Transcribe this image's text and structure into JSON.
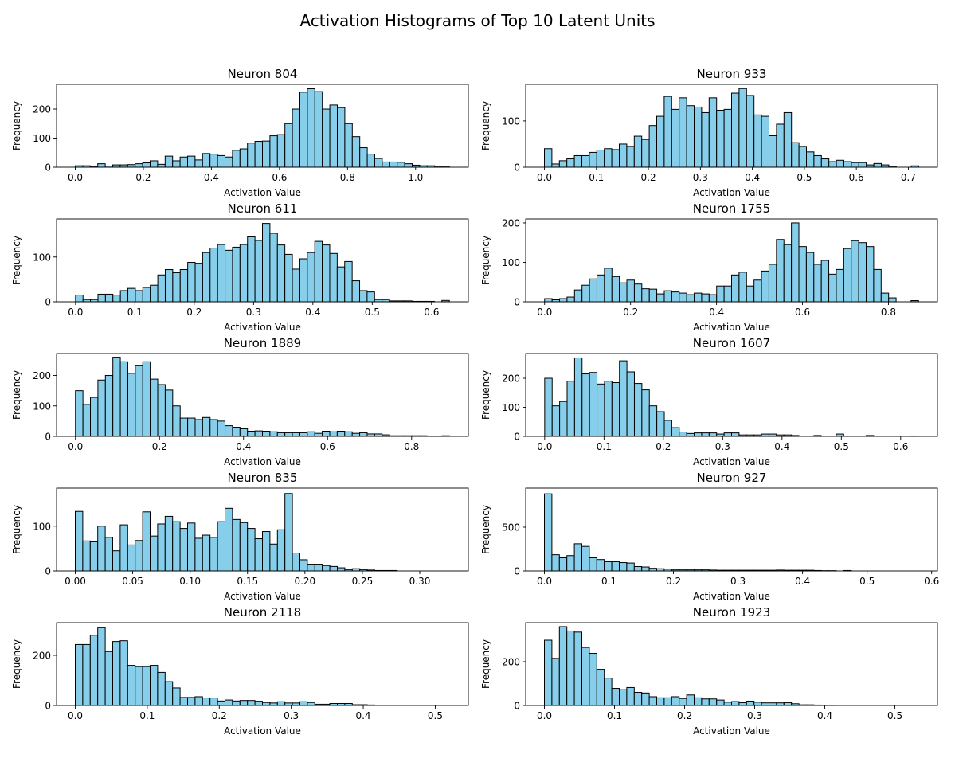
{
  "figure": {
    "suptitle": "Activation Histograms of Top 10 Latent Units",
    "bar_color": "#87CEEB",
    "edge_color": "#000000"
  },
  "chart_data": [
    {
      "type": "bar",
      "title": "Neuron 804",
      "xlabel": "Activation Value",
      "ylabel": "Frequency",
      "xlim": [
        -0.055,
        1.155
      ],
      "ylim": [
        0,
        285
      ],
      "xticks": [
        0.0,
        0.2,
        0.4,
        0.6,
        0.8,
        1.0
      ],
      "xtick_labels": [
        "0.0",
        "0.2",
        "0.4",
        "0.6",
        "0.8",
        "1.0"
      ],
      "yticks": [
        0,
        100,
        200
      ],
      "ytick_labels": [
        "0",
        "100",
        "200"
      ],
      "bin_start": 0.0,
      "bin_width": 0.022,
      "counts": [
        5,
        5,
        3,
        12,
        4,
        8,
        8,
        9,
        12,
        15,
        22,
        10,
        38,
        22,
        35,
        38,
        25,
        47,
        45,
        40,
        35,
        58,
        63,
        83,
        89,
        90,
        108,
        112,
        150,
        200,
        258,
        270,
        260,
        200,
        214,
        205,
        150,
        105,
        67,
        45,
        30,
        18,
        18,
        17,
        12,
        7,
        5,
        5,
        1,
        1
      ]
    },
    {
      "type": "bar",
      "title": "Neuron 933",
      "xlabel": "Activation Value",
      "ylabel": "Frequency",
      "xlim": [
        -0.036,
        0.756
      ],
      "ylim": [
        0,
        179
      ],
      "xticks": [
        0.0,
        0.1,
        0.2,
        0.3,
        0.4,
        0.5,
        0.6,
        0.7
      ],
      "xtick_labels": [
        "0.0",
        "0.1",
        "0.2",
        "0.3",
        "0.4",
        "0.5",
        "0.6",
        "0.7"
      ],
      "yticks": [
        0,
        100
      ],
      "ytick_labels": [
        "0",
        "100"
      ],
      "bin_start": 0.0,
      "bin_width": 0.0144,
      "counts": [
        40,
        7,
        14,
        18,
        25,
        25,
        32,
        37,
        40,
        38,
        50,
        45,
        67,
        60,
        90,
        110,
        153,
        125,
        150,
        133,
        130,
        118,
        150,
        123,
        125,
        160,
        170,
        155,
        113,
        110,
        68,
        93,
        118,
        53,
        45,
        33,
        25,
        18,
        12,
        15,
        12,
        10,
        10,
        5,
        8,
        5,
        2,
        0,
        0,
        3
      ]
    },
    {
      "type": "bar",
      "title": "Neuron 611",
      "xlabel": "Activation Value",
      "ylabel": "Frequency",
      "xlim": [
        -0.032,
        0.662
      ],
      "ylim": [
        0,
        185
      ],
      "xticks": [
        0.0,
        0.1,
        0.2,
        0.3,
        0.4,
        0.5,
        0.6
      ],
      "xtick_labels": [
        "0.0",
        "0.1",
        "0.2",
        "0.3",
        "0.4",
        "0.5",
        "0.6"
      ],
      "yticks": [
        0,
        100
      ],
      "ytick_labels": [
        "0",
        "100"
      ],
      "bin_start": 0.0,
      "bin_width": 0.0126,
      "counts": [
        15,
        5,
        5,
        17,
        17,
        15,
        25,
        30,
        25,
        32,
        37,
        60,
        72,
        65,
        72,
        88,
        86,
        110,
        120,
        128,
        115,
        122,
        128,
        145,
        137,
        175,
        153,
        127,
        106,
        73,
        96,
        110,
        135,
        127,
        108,
        78,
        90,
        47,
        25,
        22,
        5,
        5,
        2,
        2,
        2,
        1,
        1,
        1,
        0,
        3
      ]
    },
    {
      "type": "bar",
      "title": "Neuron 1755",
      "xlabel": "Activation Value",
      "ylabel": "Frequency",
      "xlim": [
        -0.044,
        0.914
      ],
      "ylim": [
        0,
        210
      ],
      "xticks": [
        0.0,
        0.2,
        0.4,
        0.6,
        0.8
      ],
      "xtick_labels": [
        "0.0",
        "0.2",
        "0.4",
        "0.6",
        "0.8"
      ],
      "yticks": [
        0,
        100,
        200
      ],
      "ytick_labels": [
        "0",
        "100",
        "200"
      ],
      "bin_start": 0.0,
      "bin_width": 0.0174,
      "counts": [
        8,
        5,
        8,
        12,
        30,
        42,
        58,
        68,
        85,
        64,
        48,
        55,
        45,
        33,
        32,
        20,
        28,
        25,
        22,
        18,
        22,
        20,
        18,
        40,
        40,
        68,
        75,
        40,
        55,
        78,
        95,
        158,
        145,
        200,
        140,
        125,
        95,
        105,
        70,
        82,
        135,
        155,
        150,
        140,
        82,
        22,
        10,
        0,
        0,
        3
      ]
    },
    {
      "type": "bar",
      "title": "Neuron 1889",
      "xlabel": "Activation Value",
      "ylabel": "Frequency",
      "xlim": [
        -0.045,
        0.935
      ],
      "ylim": [
        0,
        272
      ],
      "xticks": [
        0.0,
        0.2,
        0.4,
        0.6,
        0.8
      ],
      "xtick_labels": [
        "0.0",
        "0.2",
        "0.4",
        "0.6",
        "0.8"
      ],
      "yticks": [
        0,
        100,
        200
      ],
      "ytick_labels": [
        "0",
        "100",
        "200"
      ],
      "bin_start": 0.0,
      "bin_width": 0.0178,
      "counts": [
        150,
        105,
        128,
        185,
        200,
        260,
        245,
        207,
        232,
        245,
        188,
        170,
        152,
        100,
        60,
        60,
        55,
        62,
        55,
        50,
        35,
        30,
        25,
        17,
        18,
        17,
        15,
        12,
        12,
        12,
        12,
        15,
        10,
        17,
        15,
        17,
        15,
        10,
        12,
        8,
        8,
        5,
        2,
        2,
        2,
        2,
        2,
        1,
        1,
        2
      ]
    },
    {
      "type": "bar",
      "title": "Neuron 1607",
      "xlabel": "Activation Value",
      "ylabel": "Frequency",
      "xlim": [
        -0.032,
        0.662
      ],
      "ylim": [
        0,
        285
      ],
      "xticks": [
        0.0,
        0.1,
        0.2,
        0.3,
        0.4,
        0.5,
        0.6
      ],
      "xtick_labels": [
        "0.0",
        "0.1",
        "0.2",
        "0.3",
        "0.4",
        "0.5",
        "0.6"
      ],
      "yticks": [
        0,
        100,
        200
      ],
      "ytick_labels": [
        "0",
        "100",
        "200"
      ],
      "bin_start": 0.0,
      "bin_width": 0.0126,
      "counts": [
        200,
        105,
        120,
        190,
        270,
        215,
        220,
        180,
        190,
        185,
        260,
        222,
        182,
        160,
        105,
        85,
        55,
        30,
        15,
        10,
        12,
        12,
        12,
        8,
        12,
        12,
        5,
        5,
        5,
        8,
        8,
        5,
        5,
        3,
        0,
        0,
        3,
        0,
        0,
        8,
        0,
        0,
        0,
        3,
        0,
        0,
        0,
        0,
        0,
        1
      ]
    },
    {
      "type": "bar",
      "title": "Neuron 835",
      "xlabel": "Activation Value",
      "ylabel": "Frequency",
      "xlim": [
        -0.0163,
        0.3423
      ],
      "ylim": [
        0,
        185
      ],
      "xticks": [
        0.0,
        0.05,
        0.1,
        0.15,
        0.2,
        0.25,
        0.3
      ],
      "xtick_labels": [
        "0.00",
        "0.05",
        "0.10",
        "0.15",
        "0.20",
        "0.25",
        "0.30"
      ],
      "yticks": [
        0,
        100
      ],
      "ytick_labels": [
        "0",
        "100"
      ],
      "bin_start": 0.0,
      "bin_width": 0.00652,
      "counts": [
        133,
        67,
        65,
        100,
        75,
        45,
        103,
        58,
        68,
        132,
        78,
        105,
        122,
        110,
        95,
        107,
        73,
        80,
        75,
        110,
        140,
        115,
        108,
        95,
        72,
        88,
        60,
        92,
        173,
        40,
        25,
        15,
        15,
        12,
        10,
        7,
        3,
        5,
        3,
        2,
        1,
        1,
        1,
        0,
        0,
        0,
        0,
        0,
        0,
        0
      ]
    },
    {
      "type": "bar",
      "title": "Neuron 927",
      "xlabel": "Activation Value",
      "ylabel": "Frequency",
      "xlim": [
        -0.029,
        0.609
      ],
      "ylim": [
        0,
        945
      ],
      "xticks": [
        0.0,
        0.1,
        0.2,
        0.3,
        0.4,
        0.5,
        0.6
      ],
      "xtick_labels": [
        "0.0",
        "0.1",
        "0.2",
        "0.3",
        "0.4",
        "0.5",
        "0.6"
      ],
      "yticks": [
        0,
        500
      ],
      "ytick_labels": [
        "0",
        "500"
      ],
      "bin_start": 0.0,
      "bin_width": 0.0116,
      "counts": [
        880,
        185,
        150,
        175,
        310,
        280,
        150,
        130,
        105,
        105,
        95,
        90,
        50,
        45,
        30,
        25,
        20,
        12,
        12,
        12,
        12,
        12,
        10,
        8,
        8,
        8,
        8,
        8,
        8,
        8,
        8,
        10,
        8,
        8,
        8,
        8,
        5,
        3,
        3,
        0,
        5,
        0,
        0,
        0,
        0,
        0,
        0,
        0,
        0,
        0
      ]
    },
    {
      "type": "bar",
      "title": "Neuron 2118",
      "xlabel": "Activation Value",
      "ylabel": "Frequency",
      "xlim": [
        -0.026,
        0.546
      ],
      "ylim": [
        0,
        330
      ],
      "xticks": [
        0.0,
        0.1,
        0.2,
        0.3,
        0.4,
        0.5
      ],
      "xtick_labels": [
        "0.0",
        "0.1",
        "0.2",
        "0.3",
        "0.4",
        "0.5"
      ],
      "yticks": [
        0,
        200
      ],
      "ytick_labels": [
        "0",
        "200"
      ],
      "bin_start": 0.0,
      "bin_width": 0.0104,
      "counts": [
        243,
        243,
        280,
        310,
        215,
        255,
        258,
        160,
        155,
        155,
        160,
        132,
        95,
        70,
        32,
        32,
        35,
        30,
        30,
        18,
        22,
        18,
        20,
        20,
        17,
        12,
        10,
        15,
        10,
        10,
        15,
        12,
        5,
        5,
        8,
        8,
        8,
        3,
        3,
        2,
        0,
        0,
        0,
        0,
        0,
        0,
        0,
        0,
        0,
        0
      ]
    },
    {
      "type": "bar",
      "title": "Neuron 1923",
      "xlabel": "Activation Value",
      "ylabel": "Frequency",
      "xlim": [
        -0.0267,
        0.5607
      ],
      "ylim": [
        0,
        378
      ],
      "xticks": [
        0.0,
        0.1,
        0.2,
        0.3,
        0.4,
        0.5
      ],
      "xtick_labels": [
        "0.0",
        "0.1",
        "0.2",
        "0.3",
        "0.4",
        "0.5"
      ],
      "yticks": [
        0,
        200
      ],
      "ytick_labels": [
        "0",
        "200"
      ],
      "bin_start": 0.0,
      "bin_width": 0.01068,
      "counts": [
        298,
        215,
        360,
        340,
        335,
        265,
        238,
        165,
        125,
        78,
        72,
        82,
        60,
        57,
        40,
        35,
        35,
        40,
        32,
        48,
        35,
        30,
        30,
        25,
        15,
        18,
        13,
        20,
        15,
        12,
        12,
        12,
        13,
        8,
        3,
        3,
        2,
        1,
        1,
        0,
        0,
        0,
        0,
        0,
        0,
        0,
        0,
        0,
        0,
        0
      ]
    }
  ]
}
